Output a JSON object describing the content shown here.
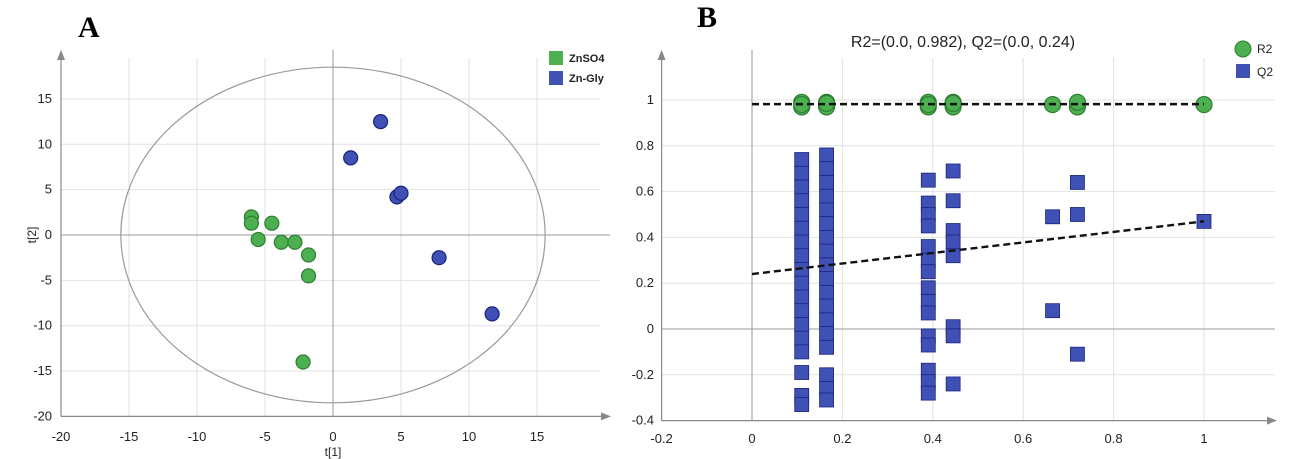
{
  "panels": {
    "a": {
      "letter": "A"
    },
    "b": {
      "letter": "B"
    }
  },
  "colors": {
    "green_fill": "#4caf50",
    "green_edge": "#2e7d32",
    "blue_fill": "#3f51b5",
    "blue_edge": "#1a237e",
    "grid": "#e2e2e2",
    "axis": "#888888"
  },
  "chart_data": [
    {
      "type": "scatter",
      "title": "",
      "xlabel": "t[1]",
      "ylabel": "t[2]",
      "xlim": [
        -20,
        20
      ],
      "ylim": [
        -20,
        20
      ],
      "x_ticks": [
        -20,
        -15,
        -10,
        -5,
        0,
        5,
        10,
        15
      ],
      "y_ticks": [
        -20,
        -15,
        -10,
        -5,
        0,
        5,
        10,
        15
      ],
      "grid": true,
      "legend_position": "top-right",
      "ellipse": {
        "center": [
          0,
          0
        ],
        "rx": 15.6,
        "ry": 18.5
      },
      "series": [
        {
          "name": "ZnSO4",
          "color": "#4caf50",
          "points": [
            [
              -6.0,
              2.0
            ],
            [
              -6.0,
              1.3
            ],
            [
              -4.5,
              1.3
            ],
            [
              -5.5,
              -0.5
            ],
            [
              -3.8,
              -0.8
            ],
            [
              -2.8,
              -0.8
            ],
            [
              -1.8,
              -2.2
            ],
            [
              -1.8,
              -4.5
            ],
            [
              -2.2,
              -14.0
            ]
          ]
        },
        {
          "name": "Zn-Gly",
          "color": "#3f51b5",
          "points": [
            [
              3.5,
              12.5
            ],
            [
              1.3,
              8.5
            ],
            [
              4.7,
              4.2
            ],
            [
              5.0,
              4.6
            ],
            [
              7.8,
              -2.5
            ],
            [
              11.7,
              -8.7
            ]
          ]
        }
      ]
    },
    {
      "type": "scatter",
      "title": "R2=(0.0, 0.982), Q2=(0.0, 0.24)",
      "xlabel": "",
      "ylabel": "",
      "xlim": [
        -0.2,
        1.15
      ],
      "ylim": [
        -0.4,
        1.1
      ],
      "x_ticks": [
        -0.2,
        0,
        0.2,
        0.4,
        0.6,
        0.8,
        1
      ],
      "y_ticks": [
        -0.4,
        -0.2,
        0,
        0.2,
        0.4,
        0.6,
        0.8,
        1
      ],
      "grid": true,
      "legend_position": "top-right",
      "series": [
        {
          "name": "R2",
          "color": "#4caf50",
          "marker": "circle",
          "points": [
            [
              0.11,
              0.97
            ],
            [
              0.11,
              0.99
            ],
            [
              0.11,
              0.98
            ],
            [
              0.165,
              0.97
            ],
            [
              0.165,
              0.99
            ],
            [
              0.165,
              0.985
            ],
            [
              0.39,
              0.97
            ],
            [
              0.39,
              0.99
            ],
            [
              0.39,
              0.98
            ],
            [
              0.445,
              0.97
            ],
            [
              0.445,
              0.99
            ],
            [
              0.445,
              0.985
            ],
            [
              0.665,
              0.98
            ],
            [
              0.72,
              0.97
            ],
            [
              0.72,
              0.99
            ],
            [
              1.0,
              0.98
            ]
          ]
        },
        {
          "name": "Q2",
          "color": "#3f51b5",
          "marker": "square",
          "points": [
            [
              0.11,
              0.74
            ],
            [
              0.11,
              0.68
            ],
            [
              0.11,
              0.62
            ],
            [
              0.11,
              0.56
            ],
            [
              0.11,
              0.5
            ],
            [
              0.11,
              0.44
            ],
            [
              0.11,
              0.38
            ],
            [
              0.11,
              0.32
            ],
            [
              0.11,
              0.26
            ],
            [
              0.11,
              0.2
            ],
            [
              0.11,
              0.14
            ],
            [
              0.11,
              0.08
            ],
            [
              0.11,
              0.02
            ],
            [
              0.11,
              -0.04
            ],
            [
              0.11,
              -0.1
            ],
            [
              0.11,
              -0.19
            ],
            [
              0.11,
              -0.29
            ],
            [
              0.11,
              -0.33
            ],
            [
              0.165,
              0.76
            ],
            [
              0.165,
              0.7
            ],
            [
              0.165,
              0.64
            ],
            [
              0.165,
              0.58
            ],
            [
              0.165,
              0.52
            ],
            [
              0.165,
              0.46
            ],
            [
              0.165,
              0.4
            ],
            [
              0.165,
              0.34
            ],
            [
              0.165,
              0.28
            ],
            [
              0.165,
              0.22
            ],
            [
              0.165,
              0.16
            ],
            [
              0.165,
              0.1
            ],
            [
              0.165,
              0.04
            ],
            [
              0.165,
              -0.02
            ],
            [
              0.165,
              -0.08
            ],
            [
              0.165,
              -0.2
            ],
            [
              0.165,
              -0.26
            ],
            [
              0.165,
              -0.31
            ],
            [
              0.39,
              0.65
            ],
            [
              0.39,
              0.55
            ],
            [
              0.39,
              0.5
            ],
            [
              0.39,
              0.45
            ],
            [
              0.39,
              0.36
            ],
            [
              0.39,
              0.3
            ],
            [
              0.39,
              0.25
            ],
            [
              0.39,
              0.18
            ],
            [
              0.39,
              0.12
            ],
            [
              0.39,
              0.07
            ],
            [
              0.39,
              -0.03
            ],
            [
              0.39,
              -0.07
            ],
            [
              0.39,
              -0.18
            ],
            [
              0.39,
              -0.23
            ],
            [
              0.39,
              -0.28
            ],
            [
              0.445,
              0.69
            ],
            [
              0.445,
              0.56
            ],
            [
              0.445,
              0.43
            ],
            [
              0.445,
              0.38
            ],
            [
              0.445,
              0.32
            ],
            [
              0.445,
              0.01
            ],
            [
              0.445,
              -0.03
            ],
            [
              0.445,
              -0.24
            ],
            [
              0.665,
              0.49
            ],
            [
              0.665,
              0.08
            ],
            [
              0.72,
              0.64
            ],
            [
              0.72,
              0.5
            ],
            [
              0.72,
              -0.11
            ],
            [
              1.0,
              0.47
            ]
          ]
        }
      ],
      "regression_lines": [
        {
          "series": "R2",
          "points": [
            [
              0.0,
              0.982
            ],
            [
              1.0,
              0.982
            ]
          ]
        },
        {
          "series": "Q2",
          "points": [
            [
              0.0,
              0.24
            ],
            [
              1.0,
              0.47
            ]
          ]
        }
      ]
    }
  ]
}
